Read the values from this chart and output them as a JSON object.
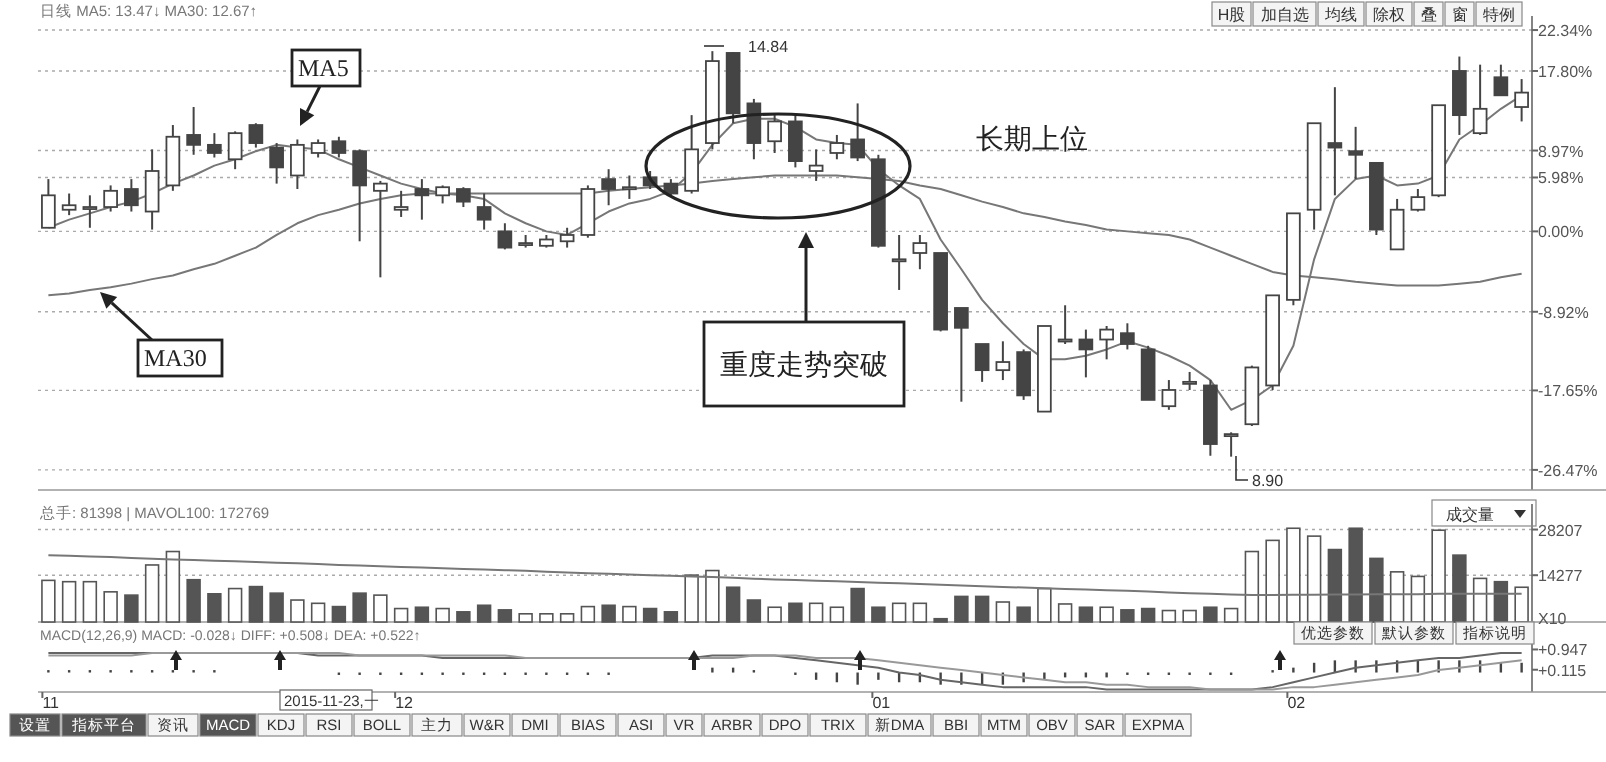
{
  "chart_data": [
    {
      "type": "candlestick",
      "color": "#444444",
      "grid": "y",
      "tick_labels": "y",
      "ylim": [
        -28.7,
        23.9
      ],
      "yticks": [
        {
          "value": 22.34,
          "label": "22.34%"
        },
        {
          "value": 17.8,
          "label": "17.80%"
        },
        {
          "value": 8.97,
          "label": "8.97%"
        },
        {
          "value": 5.98,
          "label": "5.98%"
        },
        {
          "value": 0,
          "label": "0.00%"
        },
        {
          "value": -8.92,
          "label": "-8.92%"
        },
        {
          "value": -17.65,
          "label": "-17.65%"
        },
        {
          "value": -26.47,
          "label": "-26.47%"
        }
      ],
      "categories": [
        null,
        null,
        null,
        null,
        null,
        null,
        null,
        null,
        null,
        null,
        null,
        null,
        null,
        null,
        null,
        null,
        null,
        null,
        null,
        null,
        null,
        null,
        null,
        null,
        null,
        null,
        null,
        null,
        null,
        null,
        null,
        null,
        null,
        null,
        null,
        null,
        null,
        null,
        null,
        null,
        null,
        null,
        null,
        null,
        null,
        null,
        null,
        null,
        null,
        null,
        null,
        null,
        null,
        null,
        null,
        null,
        null,
        null,
        null,
        null,
        null,
        null,
        null,
        null,
        null,
        null,
        null,
        null,
        null,
        null,
        null,
        null
      ],
      "ohlc": [
        [
          0.4,
          5.8,
          0.4,
          4.0
        ],
        [
          2.4,
          4.2,
          1.8,
          2.9
        ],
        [
          2.7,
          4.0,
          0.4,
          2.7
        ],
        [
          2.7,
          5.1,
          2.2,
          4.5
        ],
        [
          4.7,
          5.8,
          2.2,
          2.9
        ],
        [
          2.2,
          9.1,
          0.2,
          6.7
        ],
        [
          5.1,
          11.8,
          4.5,
          10.5
        ],
        [
          10.7,
          13.8,
          8.5,
          9.6
        ],
        [
          9.6,
          10.9,
          8.2,
          8.7
        ],
        [
          8.0,
          11.1,
          6.9,
          10.9
        ],
        [
          11.8,
          12.0,
          9.3,
          9.8
        ],
        [
          9.3,
          9.8,
          5.3,
          7.1
        ],
        [
          6.2,
          10.2,
          4.7,
          9.6
        ],
        [
          8.7,
          10.2,
          8.2,
          9.8
        ],
        [
          10.0,
          10.5,
          8.2,
          8.7
        ],
        [
          8.9,
          9.1,
          -1.1,
          5.1
        ],
        [
          4.5,
          5.6,
          -5.1,
          5.3
        ],
        [
          2.4,
          4.5,
          1.6,
          2.7
        ],
        [
          4.7,
          5.8,
          1.3,
          4.0
        ],
        [
          4.0,
          5.1,
          3.1,
          4.9
        ],
        [
          4.7,
          4.9,
          2.7,
          3.3
        ],
        [
          2.7,
          4.2,
          0.2,
          1.3
        ],
        [
          0,
          0.9,
          -2.0,
          -1.8
        ],
        [
          -1.3,
          -0.4,
          -1.8,
          -1.3
        ],
        [
          -1.6,
          -0.4,
          -1.8,
          -0.9
        ],
        [
          -1.1,
          0.4,
          -1.8,
          -0.4
        ],
        [
          -0.4,
          5.1,
          -0.7,
          4.7
        ],
        [
          5.8,
          6.9,
          2.9,
          4.7
        ],
        [
          4.9,
          6.2,
          3.6,
          4.9
        ],
        [
          6.0,
          6.7,
          4.7,
          5.1
        ],
        [
          5.3,
          5.8,
          3.8,
          4.2
        ],
        [
          4.5,
          12.9,
          4.2,
          9.1
        ],
        [
          9.8,
          20.0,
          9.1,
          18.9
        ],
        [
          19.8,
          19.9,
          12.0,
          13.1
        ],
        [
          14.2,
          14.7,
          8.0,
          9.8
        ],
        [
          10.0,
          12.9,
          8.7,
          12.2
        ],
        [
          12.2,
          12.9,
          7.1,
          7.8
        ],
        [
          6.7,
          9.1,
          5.6,
          7.3
        ],
        [
          8.7,
          10.7,
          8.0,
          9.8
        ],
        [
          10.2,
          14.2,
          7.8,
          8.2
        ],
        [
          8.0,
          8.5,
          -1.8,
          -1.6
        ],
        [
          -3.1,
          -0.4,
          -6.5,
          -3.1
        ],
        [
          -2.4,
          -0.4,
          -4.2,
          -1.3
        ],
        [
          -2.4,
          -2.4,
          -11.1,
          -10.9
        ],
        [
          -8.5,
          -8.5,
          -18.9,
          -10.7
        ],
        [
          -12.5,
          -12.5,
          -16.7,
          -15.4
        ],
        [
          -15.4,
          -12.2,
          -16.5,
          -14.5
        ],
        [
          -13.4,
          -13.1,
          -18.7,
          -18.2
        ],
        [
          -20.0,
          -10.5,
          -20.0,
          -10.5
        ],
        [
          -12.0,
          -8.2,
          -12.5,
          -12.0
        ],
        [
          -12.0,
          -10.9,
          -16.2,
          -13.1
        ],
        [
          -12.0,
          -10.5,
          -14.2,
          -10.9
        ],
        [
          -11.3,
          -10.2,
          -13.1,
          -12.5
        ],
        [
          -13.1,
          -12.7,
          -18.7,
          -18.7
        ],
        [
          -19.4,
          -16.5,
          -19.8,
          -17.6
        ],
        [
          -16.7,
          -15.6,
          -17.6,
          -16.7
        ],
        [
          -17.1,
          -16.5,
          -24.9,
          -23.6
        ],
        [
          -22.5,
          -22.3,
          -25.0,
          -22.5
        ],
        [
          -21.4,
          -14.9,
          -21.6,
          -15.1
        ],
        [
          -17.1,
          -7.1,
          -17.6,
          -7.1
        ],
        [
          -7.6,
          2.0,
          -8.2,
          2.0
        ],
        [
          2.4,
          12.0,
          0.2,
          12.0
        ],
        [
          9.8,
          16.0,
          4.0,
          9.3
        ],
        [
          8.9,
          11.6,
          5.8,
          8.5
        ],
        [
          7.6,
          7.6,
          -0.4,
          0.2
        ],
        [
          -2.0,
          3.6,
          -2.0,
          2.4
        ],
        [
          2.4,
          4.7,
          2.2,
          3.8
        ],
        [
          4.0,
          14.0,
          3.8,
          14.0
        ],
        [
          17.8,
          19.4,
          10.7,
          12.9
        ],
        [
          10.9,
          18.5,
          10.7,
          13.6
        ],
        [
          17.1,
          18.5,
          15.1,
          15.1
        ],
        [
          13.8,
          16.9,
          12.2,
          15.4
        ]
      ],
      "series": [
        {
          "type": "line",
          "name": "MA5",
          "color": "#777777",
          "values": [
            0.4,
            1.3,
            2.0,
            2.7,
            3.3,
            4.2,
            5.3,
            6.2,
            7.3,
            8.0,
            8.9,
            9.6,
            9.3,
            9.1,
            8.0,
            7.1,
            6.2,
            5.3,
            4.7,
            4.2,
            4.0,
            3.6,
            2.0,
            0.9,
            0,
            -0.4,
            0.9,
            2.2,
            3.1,
            3.6,
            4.5,
            6.5,
            9.6,
            12.0,
            12.5,
            12.5,
            11.6,
            10.2,
            9.8,
            9.6,
            6.9,
            5.1,
            3.6,
            -0.9,
            -4.2,
            -7.6,
            -10.2,
            -12.5,
            -14.2,
            -14.2,
            -13.8,
            -13.1,
            -12.2,
            -12.9,
            -13.8,
            -14.9,
            -16.5,
            -19.8,
            -18.7,
            -17.1,
            -12.7,
            -3.1,
            3.6,
            5.8,
            6.2,
            5.1,
            5.3,
            6.2,
            10.2,
            11.8,
            13.6,
            15.1
          ]
        },
        {
          "type": "line",
          "name": "MA30",
          "color": "#777777",
          "values": [
            -7.1,
            -6.9,
            -6.5,
            -6.2,
            -5.8,
            -5.3,
            -4.9,
            -4.2,
            -3.6,
            -2.7,
            -1.8,
            -0.4,
            0.9,
            1.8,
            2.4,
            3.1,
            3.6,
            4.0,
            4.2,
            4.2,
            4.2,
            4.2,
            4.2,
            4.2,
            4.2,
            4.2,
            4.2,
            4.5,
            4.7,
            4.9,
            5.1,
            5.3,
            5.6,
            5.8,
            6.0,
            6.2,
            6.2,
            6.2,
            6.2,
            6.0,
            5.8,
            5.6,
            5.1,
            4.7,
            4.0,
            3.3,
            2.7,
            2.0,
            1.6,
            1.1,
            0.7,
            0.2,
            0,
            -0.2,
            -0.4,
            -0.9,
            -1.8,
            -2.7,
            -3.6,
            -4.5,
            -4.9,
            -5.1,
            -5.3,
            -5.6,
            -5.8,
            -6.0,
            -6.0,
            -6.0,
            -5.8,
            -5.6,
            -5.1,
            -4.7
          ]
        }
      ],
      "annotations": [
        "日线  MA5: 13.47↓  MA30: 12.67↑",
        "14.84",
        "8.90",
        "长期上位",
        "重度走势突破",
        "H股",
        "加自选",
        "均线",
        "除权",
        "叠",
        "窗",
        "特例"
      ]
    },
    {
      "type": "bar",
      "grid": "y",
      "tick_labels": "y",
      "ylim": [
        0,
        36000
      ],
      "yticks": [
        14277,
        28207
      ],
      "categories": [
        null,
        null,
        null,
        null,
        null,
        null,
        null,
        null,
        null,
        null,
        null,
        null,
        null,
        null,
        null,
        null,
        null,
        null,
        null,
        null,
        null,
        null,
        null,
        null,
        null,
        null,
        null,
        null,
        null,
        null,
        null,
        null,
        null,
        null,
        null,
        null,
        null,
        null,
        null,
        null,
        null,
        null,
        null,
        null,
        null,
        null,
        null,
        null,
        null,
        null,
        null,
        null,
        null,
        null,
        null,
        null,
        null,
        null,
        null,
        null,
        null,
        null,
        null,
        null,
        null,
        null,
        null,
        null,
        null,
        null,
        null,
        null
      ],
      "series": [
        {
          "type": "bar",
          "color": "#555555",
          "values": [
            12700,
            12300,
            12300,
            9200,
            8200,
            17400,
            21500,
            12900,
            8600,
            10200,
            10800,
            8800,
            6700,
            5700,
            4700,
            8800,
            8200,
            4100,
            4500,
            4100,
            3100,
            5100,
            3700,
            2500,
            2500,
            2500,
            4700,
            5100,
            4700,
            4100,
            3100,
            14300,
            15700,
            10600,
            6700,
            4500,
            5700,
            5700,
            4500,
            10200,
            4500,
            5700,
            5700,
            1000,
            7800,
            7800,
            6100,
            4500,
            10200,
            5500,
            4500,
            4500,
            3700,
            4100,
            3500,
            3500,
            4500,
            4100,
            21500,
            24900,
            28600,
            26200,
            22100,
            28600,
            19400,
            15300,
            13900,
            28000,
            20400,
            13300,
            12300,
            10600
          ],
          "colors": [
            "#ffffff",
            "#ffffff",
            "#ffffff",
            "#ffffff",
            "#555555",
            "#ffffff",
            "#ffffff",
            "#555555",
            "#555555",
            "#ffffff",
            "#555555",
            "#555555",
            "#ffffff",
            "#ffffff",
            "#555555",
            "#555555",
            "#ffffff",
            "#ffffff",
            "#555555",
            "#ffffff",
            "#555555",
            "#555555",
            "#555555",
            "#ffffff",
            "#ffffff",
            "#ffffff",
            "#ffffff",
            "#555555",
            "#ffffff",
            "#555555",
            "#555555",
            "#ffffff",
            "#ffffff",
            "#555555",
            "#555555",
            "#ffffff",
            "#555555",
            "#ffffff",
            "#ffffff",
            "#555555",
            "#555555",
            "#ffffff",
            "#ffffff",
            "#555555",
            "#555555",
            "#555555",
            "#ffffff",
            "#555555",
            "#ffffff",
            "#ffffff",
            "#555555",
            "#ffffff",
            "#555555",
            "#555555",
            "#ffffff",
            "#ffffff",
            "#555555",
            "#ffffff",
            "#ffffff",
            "#ffffff",
            "#ffffff",
            "#ffffff",
            "#555555",
            "#555555",
            "#555555",
            "#ffffff",
            "#ffffff",
            "#ffffff",
            "#555555",
            "#ffffff",
            "#555555",
            "#ffffff"
          ]
        },
        {
          "type": "line",
          "color": "#777777",
          "values": [
            20400,
            20200,
            20000,
            19800,
            19500,
            19300,
            19100,
            18900,
            18700,
            18500,
            18300,
            18100,
            17900,
            17700,
            17400,
            17200,
            17000,
            16800,
            16600,
            16400,
            16200,
            16000,
            15800,
            15600,
            15300,
            15100,
            14900,
            14700,
            14500,
            14300,
            14100,
            13900,
            13700,
            13500,
            13200,
            13000,
            12800,
            12600,
            12400,
            12200,
            12000,
            11800,
            11600,
            11400,
            11100,
            10900,
            10700,
            10500,
            10300,
            10100,
            9900,
            9700,
            9500,
            9300,
            9000,
            8800,
            8600,
            8400,
            8200,
            8200,
            8300,
            8300,
            8400,
            8400,
            8500,
            8500,
            8500,
            8600,
            8600,
            8600,
            8600,
            8600
          ]
        }
      ],
      "annotations": [
        "总手: 81398 | MAVOL100: 172769",
        "成交量",
        "X10"
      ]
    },
    {
      "type": "line",
      "ylim": [
        -0.8,
        1.5
      ],
      "yticks": [
        {
          "value": 0.947,
          "label": "+0.947"
        },
        {
          "value": 0.115,
          "label": "+0.115"
        }
      ],
      "categories": [
        "11",
        null,
        null,
        null,
        null,
        null,
        null,
        null,
        null,
        null,
        null,
        null,
        null,
        null,
        null,
        null,
        null,
        "12",
        null,
        null,
        null,
        null,
        null,
        null,
        null,
        null,
        null,
        null,
        null,
        null,
        null,
        null,
        null,
        null,
        null,
        null,
        null,
        null,
        null,
        null,
        "01",
        null,
        null,
        null,
        null,
        null,
        null,
        null,
        null,
        null,
        null,
        null,
        null,
        null,
        null,
        null,
        null,
        null,
        null,
        null,
        "02",
        null,
        null,
        null,
        null,
        null,
        null,
        null,
        null,
        null,
        null,
        null
      ],
      "series": [
        {
          "type": "bar",
          "color": "#444444",
          "values": [
            0.1,
            0.1,
            0.1,
            0.1,
            0.1,
            0.1,
            0.1,
            0.1,
            0.1,
            0,
            0,
            0,
            0,
            0,
            -0.1,
            -0.1,
            -0.1,
            -0.1,
            -0.1,
            -0.1,
            -0.1,
            -0.1,
            -0.1,
            -0.1,
            -0.1,
            -0.1,
            -0.1,
            -0.1,
            0,
            0,
            0,
            0,
            0.2,
            0.2,
            0.1,
            0,
            -0.1,
            -0.3,
            -0.4,
            -0.5,
            -0.3,
            -0.4,
            -0.4,
            -0.5,
            -0.5,
            -0.5,
            -0.5,
            -0.4,
            -0.3,
            -0.2,
            -0.2,
            -0.2,
            -0.1,
            -0.1,
            -0.1,
            -0.1,
            -0.1,
            -0.1,
            0,
            0.1,
            0.2,
            0.4,
            0.5,
            0.5,
            0.5,
            0.5,
            0.5,
            0.5,
            0.5,
            0.5,
            0.4,
            0.4
          ]
        },
        {
          "type": "line",
          "color": "#666666",
          "values": [
            0.8,
            0.8,
            0.8,
            0.8,
            0.8,
            0.8,
            0.8,
            0.8,
            0.8,
            0.8,
            0.8,
            0.8,
            0.8,
            0.7,
            0.7,
            0.7,
            0.7,
            0.7,
            0.7,
            0.6,
            0.6,
            0.6,
            0.6,
            0.6,
            0.6,
            0.6,
            0.6,
            0.6,
            0.6,
            0.6,
            0.6,
            0.6,
            0.7,
            0.7,
            0.7,
            0.7,
            0.6,
            0.5,
            0.4,
            0.3,
            0.2,
            0,
            -0.1,
            -0.3,
            -0.4,
            -0.5,
            -0.6,
            -0.6,
            -0.6,
            -0.6,
            -0.6,
            -0.7,
            -0.7,
            -0.7,
            -0.7,
            -0.7,
            -0.7,
            -0.7,
            -0.7,
            -0.6,
            -0.4,
            -0.2,
            0,
            0.2,
            0.3,
            0.4,
            0.5,
            0.6,
            0.6,
            0.7,
            0.8,
            0.8
          ]
        },
        {
          "type": "line",
          "color": "#999999",
          "values": [
            0.7,
            0.7,
            0.7,
            0.7,
            0.7,
            0.8,
            0.8,
            0.8,
            0.8,
            0.8,
            0.8,
            0.8,
            0.8,
            0.8,
            0.8,
            0.7,
            0.7,
            0.7,
            0.7,
            0.7,
            0.7,
            0.7,
            0.7,
            0.6,
            0.6,
            0.6,
            0.6,
            0.6,
            0.6,
            0.6,
            0.6,
            0.6,
            0.6,
            0.6,
            0.7,
            0.7,
            0.7,
            0.6,
            0.6,
            0.6,
            0.5,
            0.4,
            0.3,
            0.2,
            0.1,
            0,
            -0.1,
            -0.2,
            -0.3,
            -0.4,
            -0.4,
            -0.5,
            -0.5,
            -0.6,
            -0.6,
            -0.6,
            -0.7,
            -0.7,
            -0.7,
            -0.7,
            -0.6,
            -0.6,
            -0.5,
            -0.4,
            -0.3,
            -0.2,
            -0.1,
            0.1,
            0.2,
            0.3,
            0.4,
            0.5
          ]
        }
      ],
      "annotations": [
        "MACD(12,26,9)  MACD: -0.028↓  DIFF: +0.508↓  DEA: +0.522↑",
        "优选参数",
        "默认参数",
        "指标说明",
        "2015-11-23,一",
        "设置",
        "指标平台",
        "资讯",
        "MACD",
        "KDJ",
        "RSI",
        "BOLL",
        "主力",
        "W&R",
        "DMI",
        "BIAS",
        "ASI",
        "VR",
        "ARBR",
        "DPO",
        "TRIX",
        "新DMA",
        "BBI",
        "MTM",
        "OBV",
        "SAR",
        "EXPMA"
      ]
    }
  ]
}
